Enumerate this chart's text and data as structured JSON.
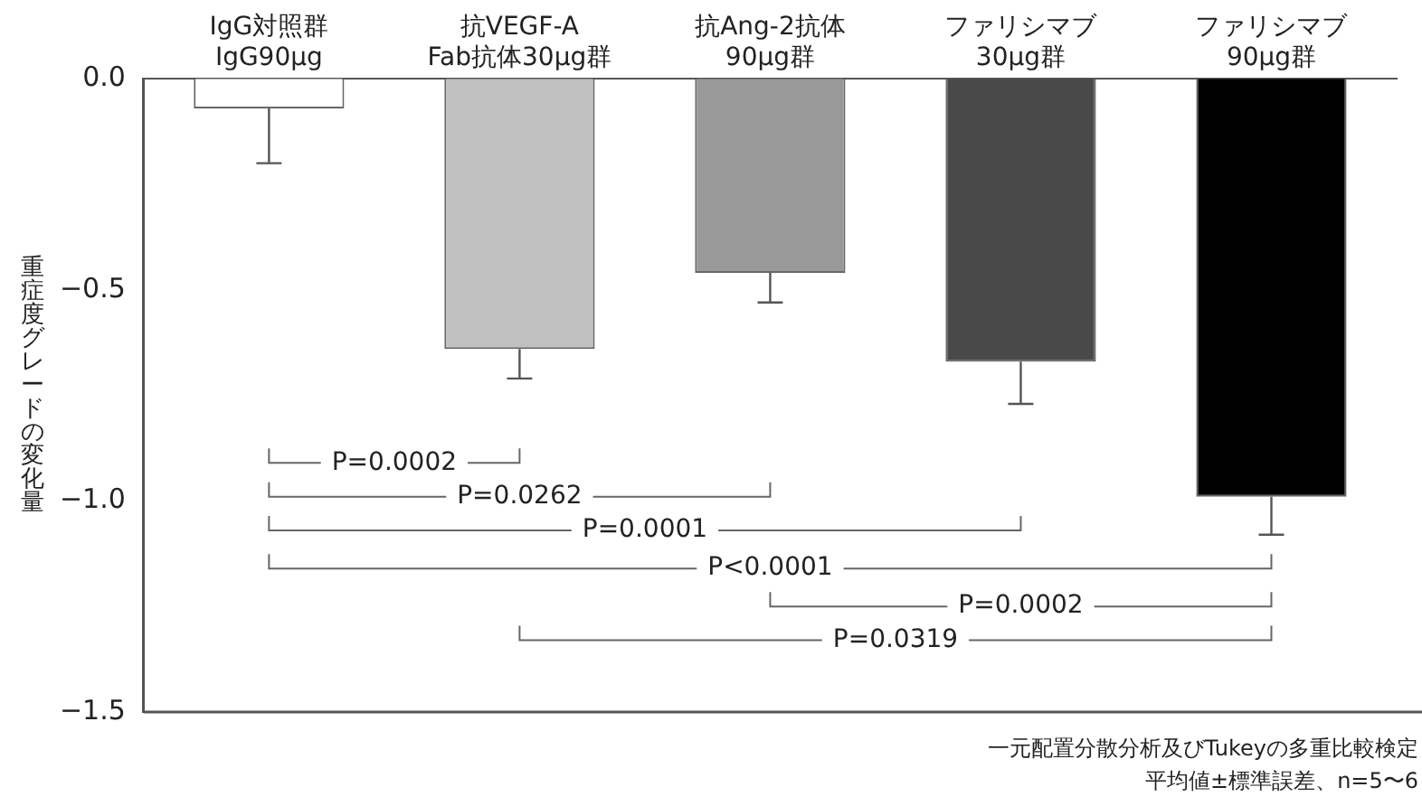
{
  "chart_data": {
    "type": "bar",
    "ylabel": "重症度グレードの変化量",
    "categories": [
      "IgG対照群\nIgG90μg",
      "抗VEGF-A\nFab抗体30μg群",
      "抗Ang-2抗体\n90μg群",
      "ファリシマブ\n30μg群",
      "ファリシマブ\n90μg群"
    ],
    "values": [
      -0.07,
      -0.64,
      -0.46,
      -0.67,
      -0.99
    ],
    "errors": [
      0.13,
      0.07,
      0.07,
      0.1,
      0.09
    ],
    "colors": [
      "#ffffff",
      "#c0c0c0",
      "#999999",
      "#494949",
      "#000000"
    ],
    "ylim": [
      -1.5,
      0
    ],
    "yticks": [
      {
        "value": 0,
        "label": "0.0"
      },
      {
        "value": -0.5,
        "label": "−0.5"
      },
      {
        "value": -1,
        "label": "−1.0"
      },
      {
        "value": -1.5,
        "label": "−1.5"
      }
    ],
    "grid": false,
    "legend": false,
    "annotations": [
      "P=0.0002",
      "P=0.0262",
      "P=0.0001",
      "P<0.0001",
      "P=0.0002",
      "P=0.0319",
      "一元配置分散分析及びTukeyの多重比較検定",
      "平均値±標準誤差、n=5〜6"
    ]
  }
}
